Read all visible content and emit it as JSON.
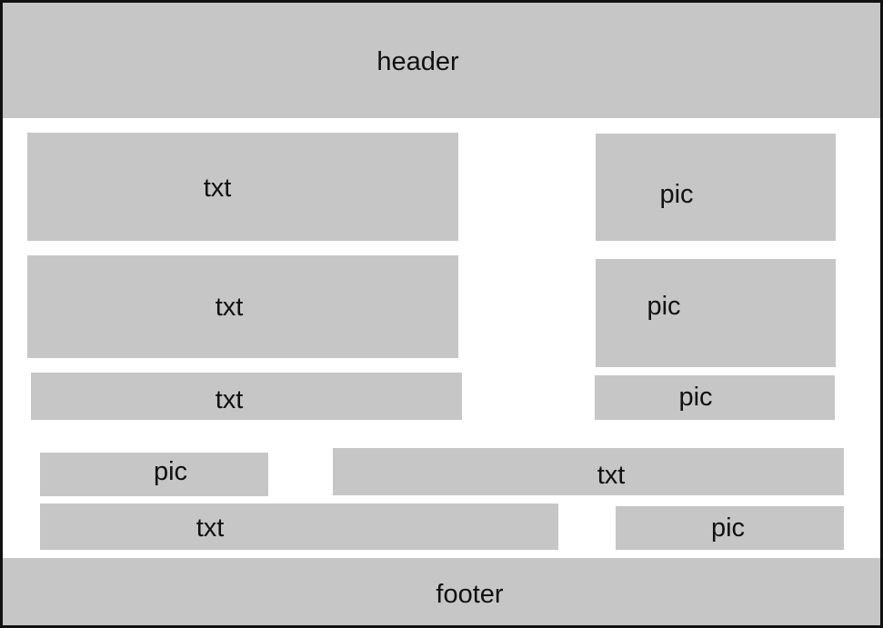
{
  "header": {
    "label": "header"
  },
  "footer": {
    "label": "footer"
  },
  "blocks": [
    {
      "label": "txt"
    },
    {
      "label": "txt"
    },
    {
      "label": "txt"
    },
    {
      "label": "pic"
    },
    {
      "label": "pic"
    },
    {
      "label": "pic"
    },
    {
      "label": "pic"
    },
    {
      "label": "txt"
    },
    {
      "label": "txt"
    },
    {
      "label": "pic"
    }
  ],
  "colors": {
    "block_fill": "#c6c6c6",
    "border": "#111111",
    "background": "#ffffff"
  }
}
